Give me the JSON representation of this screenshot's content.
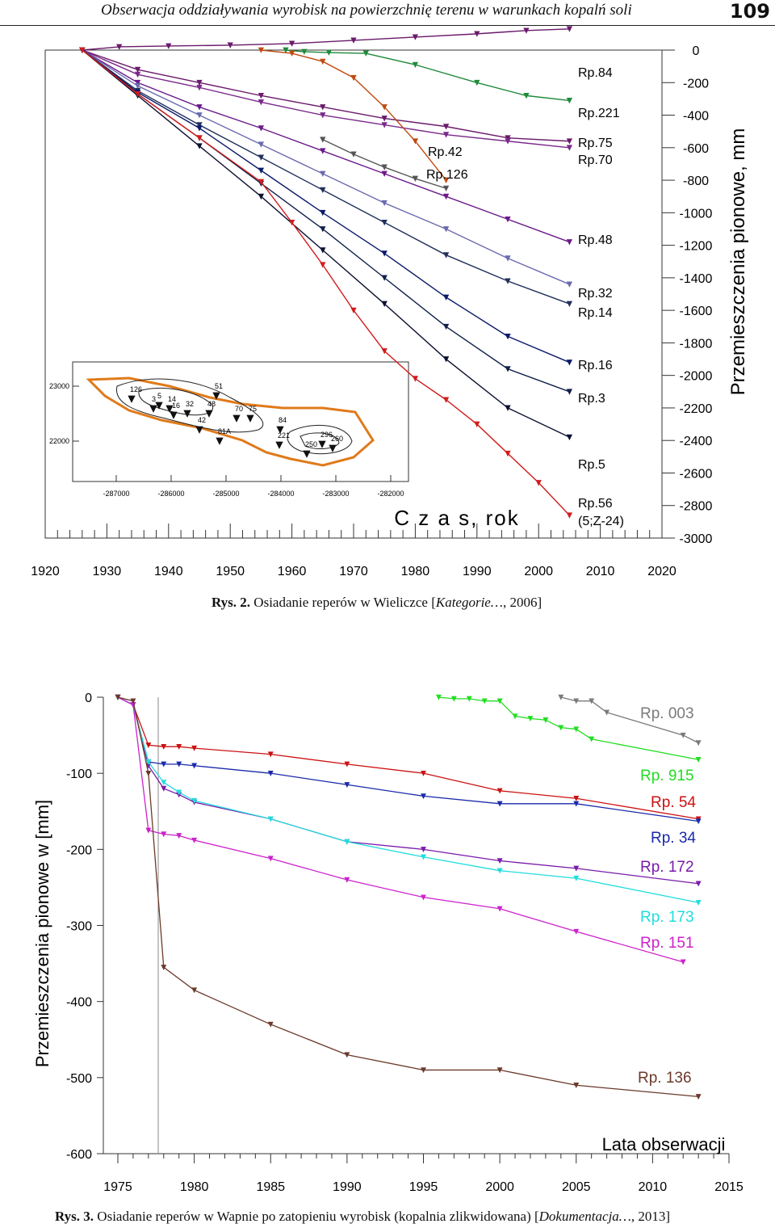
{
  "header": {
    "title": "Obserwacja oddziaływania wyrobisk na powierzchnię terenu w warunkach kopalń soli",
    "page_number": "109"
  },
  "figure1": {
    "caption_label": "Rys. 2.",
    "caption_text": "Osiadanie reperów w Wieliczce [",
    "caption_source": "Kategorie…",
    "caption_end": ", 2006]"
  },
  "figure2": {
    "caption_label": "Rys. 3.",
    "caption_text": "Osiadanie reperów w Wapnie po zatopieniu wyrobisk (kopalnia zlikwidowana) [",
    "caption_source": "Dokumentacja…",
    "caption_end": ", 2013]"
  },
  "chart_data": [
    {
      "type": "line",
      "title": "",
      "xlabel": "C z a s, rok",
      "ylabel": "Przemieszczenia pionowe, mm",
      "xlim": [
        1920,
        2020
      ],
      "ylim": [
        -3000,
        0
      ],
      "x_ticks": [
        "1920",
        "1930",
        "1940",
        "1950",
        "1960",
        "1970",
        "1980",
        "1990",
        "2000",
        "2010",
        "2020"
      ],
      "y_ticks": [
        "0",
        "-200",
        "-400",
        "-600",
        "-800",
        "-1000",
        "-1200",
        "-1400",
        "-1600",
        "-1800",
        "-2000",
        "-2200",
        "-2400",
        "-2600",
        "-2800",
        "-3000"
      ],
      "series": [
        {
          "name": "Rp.84",
          "color": "#6a1a6a",
          "label": "Rp.84",
          "x": [
            1926,
            1932,
            1940,
            1950,
            1960,
            1970,
            1980,
            1990,
            1998,
            2005
          ],
          "y": [
            0,
            20,
            25,
            30,
            40,
            60,
            80,
            100,
            120,
            130
          ]
        },
        {
          "name": "Rp.221",
          "color": "#1f8a3a",
          "label": "Rp.221",
          "x": [
            1959,
            1962,
            1966,
            1972,
            1980,
            1990,
            1998,
            2005
          ],
          "y": [
            0,
            -10,
            -15,
            -20,
            -90,
            -200,
            -280,
            -310
          ]
        },
        {
          "name": "Rp.75",
          "color": "#6a1a6a",
          "label": "Rp.75",
          "x": [
            1926,
            1935,
            1945,
            1955,
            1965,
            1975,
            1985,
            1995,
            2005
          ],
          "y": [
            0,
            -120,
            -200,
            -280,
            -350,
            -420,
            -470,
            -540,
            -560
          ]
        },
        {
          "name": "Rp.70",
          "color": "#7a2a8a",
          "label": "Rp.70",
          "x": [
            1926,
            1935,
            1945,
            1955,
            1965,
            1975,
            1985,
            1995,
            2005
          ],
          "y": [
            0,
            -150,
            -230,
            -320,
            -400,
            -460,
            -520,
            -560,
            -600
          ]
        },
        {
          "name": "Rp.42",
          "color": "#c04a10",
          "label": "Rp.42",
          "x": [
            1955,
            1960,
            1965,
            1970,
            1975,
            1980,
            1985
          ],
          "y": [
            0,
            -20,
            -70,
            -170,
            -350,
            -560,
            -800
          ]
        },
        {
          "name": "Rp.126",
          "color": "#555555",
          "label": "Rp.126",
          "x": [
            1965,
            1970,
            1975,
            1980,
            1985
          ],
          "y": [
            -550,
            -640,
            -720,
            -790,
            -850
          ]
        },
        {
          "name": "Rp.48",
          "color": "#6a1a8a",
          "label": "Rp.48",
          "x": [
            1926,
            1935,
            1945,
            1955,
            1965,
            1975,
            1985,
            1995,
            2005
          ],
          "y": [
            0,
            -200,
            -350,
            -480,
            -620,
            -760,
            -900,
            -1040,
            -1180
          ]
        },
        {
          "name": "Rp.32",
          "color": "#6a6ab0",
          "label": "Rp.32",
          "x": [
            1926,
            1935,
            1945,
            1955,
            1965,
            1975,
            1985,
            1995,
            2005
          ],
          "y": [
            0,
            -220,
            -400,
            -580,
            -760,
            -940,
            -1100,
            -1280,
            -1440
          ]
        },
        {
          "name": "Rp.14",
          "color": "#20305a",
          "label": "Rp.14",
          "x": [
            1926,
            1935,
            1945,
            1955,
            1965,
            1975,
            1985,
            1995,
            2005
          ],
          "y": [
            0,
            -250,
            -460,
            -660,
            -860,
            -1060,
            -1260,
            -1420,
            -1560
          ]
        },
        {
          "name": "Rp.16",
          "color": "#0b1a6a",
          "label": "Rp.16",
          "x": [
            1926,
            1935,
            1945,
            1955,
            1965,
            1975,
            1985,
            1995,
            2005
          ],
          "y": [
            0,
            -260,
            -480,
            -740,
            -1000,
            -1250,
            -1520,
            -1760,
            -1920
          ]
        },
        {
          "name": "Rp.3",
          "color": "#10204a",
          "label": "Rp.3",
          "x": [
            1926,
            1935,
            1945,
            1955,
            1965,
            1975,
            1985,
            1995,
            2005
          ],
          "y": [
            0,
            -270,
            -540,
            -820,
            -1100,
            -1400,
            -1700,
            -1960,
            -2100
          ]
        },
        {
          "name": "Rp.5",
          "color": "#0b1030",
          "label": "Rp.5",
          "x": [
            1926,
            1935,
            1945,
            1955,
            1965,
            1975,
            1985,
            1995,
            2005
          ],
          "y": [
            0,
            -280,
            -590,
            -900,
            -1230,
            -1560,
            -1900,
            -2200,
            -2380
          ]
        },
        {
          "name": "Rp.56 (5;Z-24)",
          "color": "#d21c1c",
          "label": "Rp.56",
          "label2": "(5;Z-24)",
          "x": [
            1926,
            1935,
            1945,
            1955,
            1960,
            1965,
            1970,
            1975,
            1980,
            1985,
            1990,
            1995,
            2000,
            2005
          ],
          "y": [
            0,
            -270,
            -540,
            -810,
            -1060,
            -1320,
            -1600,
            -1850,
            -2020,
            -2150,
            -2300,
            -2480,
            -2660,
            -2860
          ]
        }
      ],
      "inset": {
        "x_ticks": [
          "-287000",
          "-286000",
          "-285000",
          "-284000",
          "-283000",
          "-282000"
        ],
        "y_ticks": [
          "23000",
          "22000"
        ],
        "point_labels": [
          "126",
          "3",
          "5",
          "14",
          "16",
          "32",
          "48",
          "51",
          "42",
          "81A",
          "70",
          "75",
          "84",
          "221",
          "250",
          "296",
          "260"
        ]
      }
    },
    {
      "type": "line",
      "title": "",
      "xlabel": "Lata obserwacji",
      "ylabel": "Przemieszczenia pionowe w [mm]",
      "xlim": [
        1975,
        2015
      ],
      "ylim": [
        -600,
        0
      ],
      "x_ticks": [
        "1975",
        "1980",
        "1985",
        "1990",
        "1995",
        "2000",
        "2005",
        "2010",
        "2015"
      ],
      "y_ticks": [
        "0",
        "-100",
        "-200",
        "-300",
        "-400",
        "-500",
        "-600"
      ],
      "series": [
        {
          "name": "Rp. 003",
          "color": "#7a7a7a",
          "x": [
            2004,
            2005,
            2006,
            2007,
            2012,
            2013
          ],
          "y": [
            0,
            -5,
            -5,
            -20,
            -50,
            -60
          ]
        },
        {
          "name": "Rp. 915",
          "color": "#22dd22",
          "x": [
            1996,
            1997,
            1998,
            1999,
            2000,
            2001,
            2002,
            2003,
            2004,
            2005,
            2006,
            2013
          ],
          "y": [
            0,
            -2,
            -2,
            -5,
            -5,
            -25,
            -28,
            -30,
            -40,
            -42,
            -55,
            -82
          ]
        },
        {
          "name": "Rp. 54",
          "color": "#cc1111",
          "x": [
            1975,
            1976,
            1977,
            1978,
            1979,
            1980,
            1985,
            1990,
            1995,
            2000,
            2005,
            2013
          ],
          "y": [
            0,
            -10,
            -63,
            -65,
            -65,
            -67,
            -75,
            -88,
            -100,
            -123,
            -133,
            -160
          ]
        },
        {
          "name": "Rp. 34",
          "color": "#1a2aaa",
          "x": [
            1975,
            1976,
            1977,
            1978,
            1979,
            1980,
            1985,
            1990,
            1995,
            2000,
            2005,
            2013
          ],
          "y": [
            0,
            -10,
            -85,
            -88,
            -88,
            -90,
            -100,
            -115,
            -130,
            -140,
            -140,
            -163
          ]
        },
        {
          "name": "Rp. 172",
          "color": "#7a1aaa",
          "x": [
            1975,
            1976,
            1977,
            1978,
            1979,
            1980,
            1985,
            1990,
            1995,
            2000,
            2005,
            2013
          ],
          "y": [
            0,
            -10,
            -90,
            -120,
            -128,
            -138,
            -160,
            -190,
            -200,
            -215,
            -225,
            -245
          ]
        },
        {
          "name": "Rp. 173",
          "color": "#22dddd",
          "x": [
            1975,
            1976,
            1977,
            1978,
            1979,
            1980,
            1985,
            1990,
            1995,
            2000,
            2005,
            2013
          ],
          "y": [
            0,
            -10,
            -85,
            -112,
            -125,
            -136,
            -160,
            -190,
            -210,
            -228,
            -238,
            -270
          ]
        },
        {
          "name": "Rp. 151",
          "color": "#cc22cc",
          "x": [
            1975,
            1976,
            1977,
            1978,
            1979,
            1980,
            1985,
            1990,
            1995,
            2000,
            2005,
            2012
          ],
          "y": [
            0,
            -10,
            -175,
            -180,
            -182,
            -188,
            -212,
            -240,
            -263,
            -278,
            -308,
            -348
          ]
        },
        {
          "name": "Rp. 136",
          "color": "#6a3a2a",
          "x": [
            1975,
            1976,
            1977,
            1978,
            1980,
            1985,
            1990,
            1995,
            2000,
            2005,
            2013
          ],
          "y": [
            0,
            -5,
            -100,
            -355,
            -385,
            -430,
            -470,
            -490,
            -490,
            -510,
            -525
          ]
        }
      ]
    }
  ]
}
